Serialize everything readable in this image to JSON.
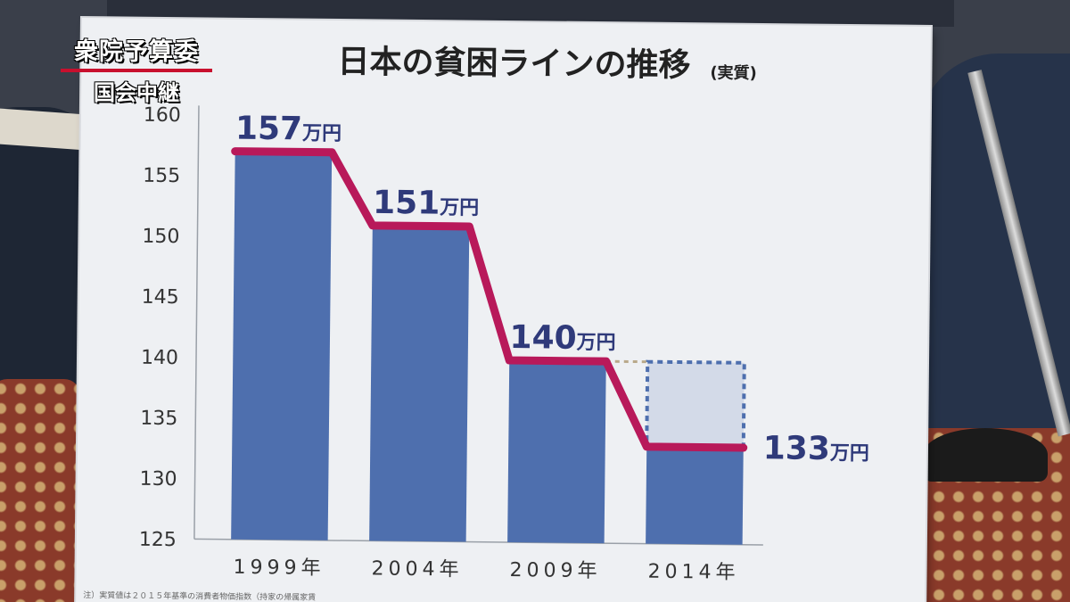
{
  "overlay": {
    "program": "衆院予算委",
    "subtitle": "国会中継"
  },
  "chart_data": {
    "type": "bar",
    "title": "日本の貧困ラインの推移",
    "title_note": "(実質)",
    "categories": [
      "1999年",
      "2004年",
      "2009年",
      "2014年"
    ],
    "values": [
      157,
      151,
      140,
      133
    ],
    "value_labels": [
      {
        "number": "157",
        "unit": "万円"
      },
      {
        "number": "151",
        "unit": "万円"
      },
      {
        "number": "140",
        "unit": "万円"
      },
      {
        "number": "133",
        "unit": "万円"
      }
    ],
    "ylim": [
      125,
      160
    ],
    "yticks": [
      "125",
      "130",
      "135",
      "140",
      "145",
      "150",
      "155",
      "160"
    ],
    "grid": false,
    "legend": "none",
    "reference_value": 140,
    "footnote": "注）実質値は２０１５年基準の消費者物価指数（持家の帰属家賃",
    "colors": {
      "bar": "#4e6fae",
      "line": "#b8195a",
      "value_number": "#2f3a7a",
      "reference": "#8d9fcc",
      "reference_fill": "#d3dae8",
      "axis_text": "#333333",
      "title": "#222222"
    }
  }
}
